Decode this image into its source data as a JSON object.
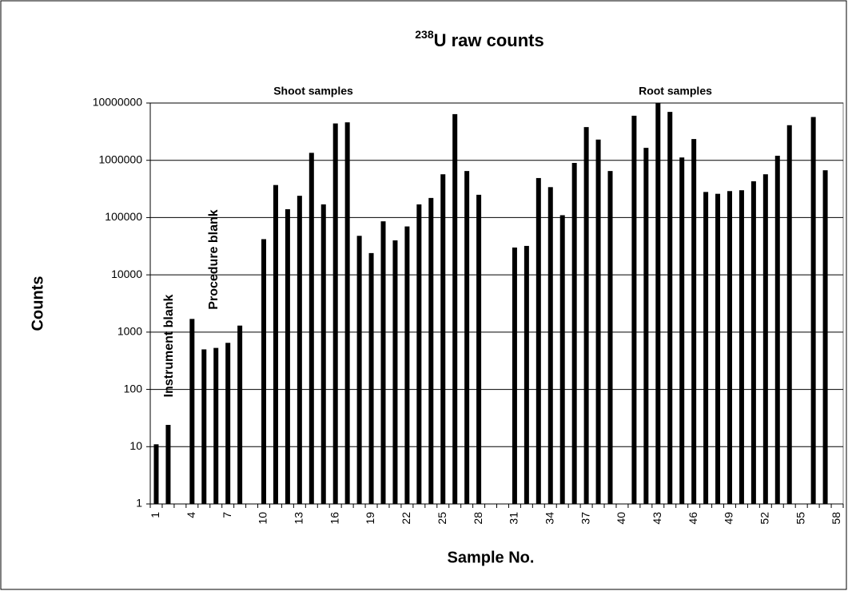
{
  "chart_data": {
    "type": "bar",
    "title_superscript": "238",
    "title": "U raw counts",
    "x_label": "Sample No.",
    "y_label": "Counts",
    "annotations": [
      "Shoot samples",
      "Root samples",
      "Instrument blank",
      "Procedure blank"
    ],
    "categories": [
      "1",
      null,
      null,
      "4",
      null,
      null,
      "7",
      null,
      null,
      "10",
      null,
      null,
      "13",
      null,
      null,
      "16",
      null,
      null,
      "19",
      null,
      null,
      "22",
      null,
      null,
      "25",
      null,
      null,
      "28",
      null,
      null,
      "31",
      null,
      null,
      "34",
      null,
      null,
      "37",
      null,
      null,
      "40",
      null,
      null,
      "43",
      null,
      null,
      "46",
      null,
      null,
      "49",
      null,
      null,
      "52",
      null,
      null,
      "55",
      null,
      null,
      "58"
    ],
    "values": [
      11,
      24,
      null,
      1700,
      500,
      530,
      650,
      1300,
      null,
      42000,
      370000,
      140000,
      240000,
      1350000,
      170000,
      4400000,
      4600000,
      48000,
      24000,
      86000,
      40000,
      70000,
      170000,
      220000,
      570000,
      6400000,
      650000,
      250000,
      null,
      null,
      30000,
      32000,
      490000,
      340000,
      110000,
      900000,
      3800000,
      2300000,
      650000,
      null,
      6000000,
      1650000,
      10000000,
      7000000,
      1120000,
      2350000,
      280000,
      260000,
      290000,
      300000,
      430000,
      570000,
      1200000,
      4100000,
      null,
      5700000,
      670000,
      null
    ],
    "color": "#000000",
    "log": true,
    "grid": true,
    "ylim": [
      1,
      10000000
    ],
    "yticks": [
      1,
      10,
      100,
      1000,
      10000,
      100000,
      1000000,
      10000000
    ]
  }
}
